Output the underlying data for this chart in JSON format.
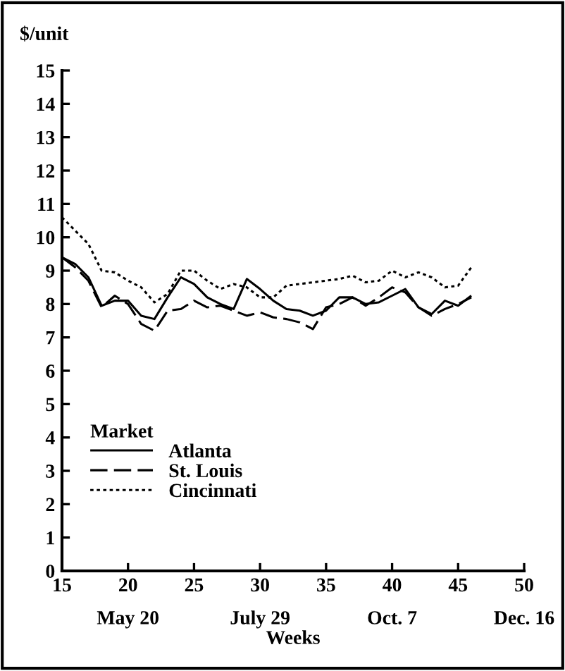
{
  "chart_data": {
    "type": "line",
    "ylabel": "$/unit",
    "xlabel": "Weeks",
    "legend_title": "Market",
    "legend": "bottom left",
    "grid": false,
    "marker": "none",
    "x": [
      15,
      16,
      17,
      18,
      19,
      20,
      21,
      22,
      23,
      24,
      25,
      26,
      27,
      28,
      29,
      30,
      31,
      32,
      33,
      34,
      35,
      36,
      37,
      38,
      39,
      40,
      41,
      42,
      43,
      44,
      45,
      46
    ],
    "xlim": [
      15,
      50
    ],
    "xticks": [
      15,
      {
        "value": 20,
        "label": "20\n\nMay 20"
      },
      25,
      {
        "value": 30,
        "label": "30\n\nJuly 29"
      },
      35,
      {
        "value": 40,
        "label": "40\n\nOct. 7"
      },
      45,
      {
        "value": 50,
        "label": "50\n\nDec. 16"
      }
    ],
    "ylim": [
      0,
      15
    ],
    "yticks": [
      0,
      1,
      2,
      3,
      4,
      5,
      6,
      7,
      8,
      9,
      10,
      11,
      12,
      13,
      14,
      15
    ],
    "series": [
      {
        "name": "Atlanta",
        "color": "#000000",
        "line_style": "solid",
        "values": [
          9.4,
          9.2,
          8.8,
          7.95,
          8.1,
          8.1,
          7.65,
          7.55,
          8.2,
          8.8,
          8.6,
          8.2,
          8.0,
          7.85,
          8.75,
          8.45,
          8.1,
          7.85,
          7.8,
          7.65,
          7.8,
          8.2,
          8.2,
          8.0,
          8.05,
          8.25,
          8.45,
          7.9,
          7.7,
          8.1,
          7.95,
          8.25
        ]
      },
      {
        "name": "St. Louis",
        "color": "#000000",
        "line_style": "dashed",
        "values": [
          9.4,
          9.1,
          8.7,
          7.9,
          8.25,
          8.0,
          7.4,
          7.2,
          7.8,
          7.85,
          8.1,
          7.9,
          7.95,
          7.8,
          7.65,
          7.75,
          7.6,
          7.55,
          7.45,
          7.25,
          7.9,
          8.0,
          8.2,
          7.95,
          8.2,
          8.5,
          8.35,
          7.9,
          7.65,
          7.85,
          8.0,
          8.2
        ]
      },
      {
        "name": "Cincinnati",
        "color": "#000000",
        "line_style": "dotted",
        "values": [
          10.6,
          10.2,
          9.8,
          9.0,
          8.95,
          8.7,
          8.5,
          8.05,
          8.3,
          9.0,
          9.0,
          8.7,
          8.45,
          8.6,
          8.5,
          8.2,
          8.2,
          8.55,
          8.6,
          8.65,
          8.7,
          8.75,
          8.85,
          8.65,
          8.7,
          9.0,
          8.8,
          8.95,
          8.8,
          8.5,
          8.55,
          9.1
        ]
      }
    ]
  }
}
